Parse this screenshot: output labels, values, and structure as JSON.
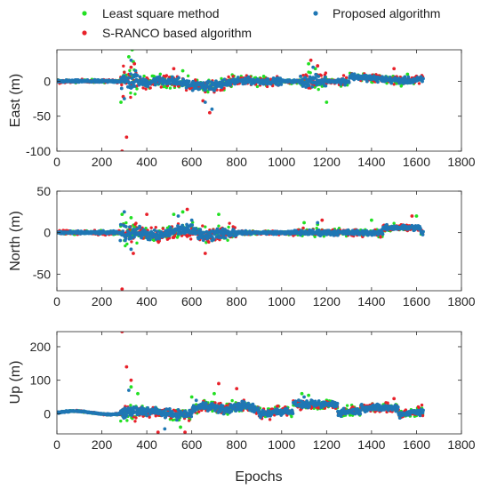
{
  "legend": [
    {
      "name": "Least square method",
      "color": "#22e022"
    },
    {
      "name": "S-RANCO based algorithm",
      "color": "#e8212a"
    },
    {
      "name": "Proposed algorithm",
      "color": "#1f77b4"
    }
  ],
  "chart_data": [
    {
      "type": "scatter",
      "ylabel": "East (m)",
      "xlabel": "",
      "xlim": [
        0,
        1800
      ],
      "ylim": [
        -100,
        45
      ],
      "xticks": [
        0,
        200,
        400,
        600,
        800,
        1000,
        1200,
        1400,
        1600,
        1800
      ],
      "yticks": [
        -100,
        -50,
        0
      ],
      "n_epochs": 1630,
      "series": [
        {
          "name": "Least square method",
          "color": "#22e022",
          "outliers": [
            [
              285,
              -30
            ],
            [
              320,
              35
            ],
            [
              335,
              45
            ],
            [
              340,
              28
            ],
            [
              560,
              15
            ],
            [
              1120,
              25
            ],
            [
              1150,
              18
            ],
            [
              1200,
              -30
            ],
            [
              1560,
              10
            ]
          ]
        },
        {
          "name": "S-RANCO based algorithm",
          "color": "#e8212a",
          "outliers": [
            [
              290,
              -100
            ],
            [
              295,
              -22
            ],
            [
              310,
              -80
            ],
            [
              330,
              20
            ],
            [
              345,
              25
            ],
            [
              520,
              18
            ],
            [
              650,
              -28
            ],
            [
              680,
              -45
            ],
            [
              1130,
              30
            ],
            [
              1160,
              22
            ],
            [
              1500,
              18
            ]
          ]
        },
        {
          "name": "Proposed algorithm",
          "color": "#1f77b4",
          "outliers": [
            [
              300,
              -25
            ],
            [
              330,
              30
            ],
            [
              350,
              15
            ],
            [
              660,
              -30
            ],
            [
              690,
              -40
            ],
            [
              1140,
              20
            ]
          ]
        }
      ]
    },
    {
      "type": "scatter",
      "ylabel": "North (m)",
      "xlabel": "",
      "xlim": [
        0,
        1800
      ],
      "ylim": [
        -70,
        50
      ],
      "xticks": [
        0,
        200,
        400,
        600,
        800,
        1000,
        1200,
        1400,
        1600,
        1800
      ],
      "yticks": [
        -50,
        0,
        50
      ],
      "n_epochs": 1630,
      "series": [
        {
          "name": "Least square method",
          "color": "#22e022",
          "outliers": [
            [
              290,
              22
            ],
            [
              330,
              18
            ],
            [
              520,
              22
            ],
            [
              560,
              25
            ],
            [
              720,
              22
            ],
            [
              1100,
              12
            ],
            [
              1160,
              10
            ],
            [
              1400,
              15
            ],
            [
              1600,
              20
            ]
          ]
        },
        {
          "name": "S-RANCO based algorithm",
          "color": "#e8212a",
          "outliers": [
            [
              290,
              -68
            ],
            [
              340,
              -25
            ],
            [
              400,
              22
            ],
            [
              580,
              28
            ],
            [
              660,
              -25
            ],
            [
              1180,
              15
            ],
            [
              1580,
              20
            ]
          ]
        },
        {
          "name": "Proposed algorithm",
          "color": "#1f77b4",
          "outliers": [
            [
              300,
              25
            ],
            [
              330,
              -20
            ],
            [
              540,
              20
            ],
            [
              600,
              15
            ],
            [
              1160,
              12
            ]
          ]
        }
      ]
    },
    {
      "type": "scatter",
      "ylabel": "Up (m)",
      "xlabel": "Epochs",
      "xlim": [
        0,
        1800
      ],
      "ylim": [
        -60,
        245
      ],
      "xticks": [
        0,
        200,
        400,
        600,
        800,
        1000,
        1200,
        1400,
        1600,
        1800
      ],
      "yticks": [
        0,
        100,
        200
      ],
      "n_epochs": 1630,
      "series": [
        {
          "name": "Least square method",
          "color": "#22e022",
          "outliers": [
            [
              330,
              80
            ],
            [
              360,
              60
            ],
            [
              550,
              -40
            ],
            [
              600,
              50
            ],
            [
              700,
              60
            ],
            [
              1090,
              60
            ],
            [
              1120,
              55
            ],
            [
              1200,
              40
            ]
          ]
        },
        {
          "name": "S-RANCO based algorithm",
          "color": "#e8212a",
          "outliers": [
            [
              290,
              245
            ],
            [
              310,
              140
            ],
            [
              330,
              100
            ],
            [
              450,
              -55
            ],
            [
              570,
              -55
            ],
            [
              720,
              90
            ],
            [
              800,
              75
            ],
            [
              1500,
              45
            ]
          ]
        },
        {
          "name": "Proposed algorithm",
          "color": "#1f77b4",
          "outliers": [
            [
              320,
              70
            ],
            [
              480,
              -45
            ],
            [
              620,
              40
            ],
            [
              1100,
              50
            ]
          ]
        }
      ]
    }
  ]
}
